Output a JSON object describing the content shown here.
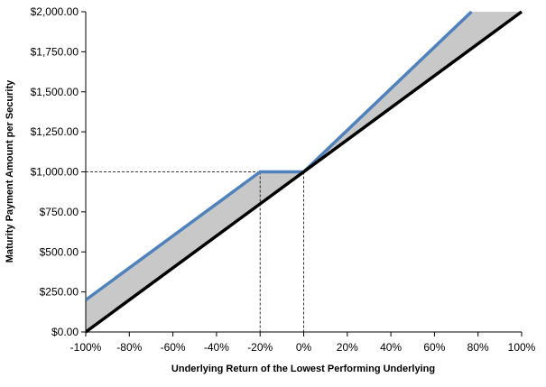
{
  "chart_data": {
    "type": "line",
    "title": "",
    "xlabel": "Underlying Return of the Lowest Performing Underlying",
    "ylabel": "Maturity Payment Amount per Security",
    "xlim": [
      -100,
      100
    ],
    "ylim": [
      0,
      2000
    ],
    "x_ticks": [
      -100,
      -80,
      -60,
      -40,
      -20,
      0,
      20,
      40,
      60,
      80,
      100
    ],
    "x_tick_labels": [
      "-100%",
      "-80%",
      "-60%",
      "-40%",
      "-20%",
      "0%",
      "20%",
      "40%",
      "60%",
      "80%",
      "100%"
    ],
    "y_ticks": [
      0,
      250,
      500,
      750,
      1000,
      1250,
      1500,
      1750,
      2000
    ],
    "y_tick_labels": [
      "$0.00",
      "$250.00",
      "$500.00",
      "$750.00",
      "$1,000.00",
      "$1,250.00",
      "$1,500.00",
      "$1,750.00",
      "$2,000.00"
    ],
    "grid": false,
    "legend": "none",
    "series": [
      {
        "color": "#4f81bd",
        "x": [
          -100,
          -20,
          0,
          77
        ],
        "y": [
          200,
          1000,
          1000,
          2000
        ]
      },
      {
        "color": "#000000",
        "x": [
          -100,
          100
        ],
        "y": [
          0,
          2000
        ]
      }
    ],
    "shaded_region_color": "#c8c8c8",
    "reference_lines": [
      {
        "x": -20,
        "y": 1000
      },
      {
        "x": 0,
        "y": 1000
      }
    ]
  }
}
